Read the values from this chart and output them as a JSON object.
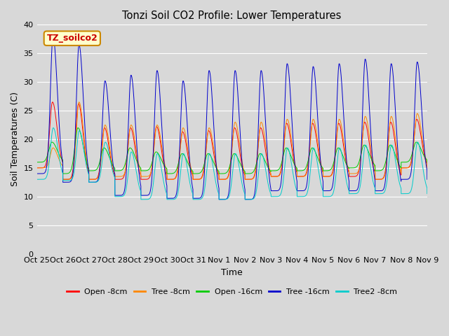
{
  "title": "Tonzi Soil CO2 Profile: Lower Temperatures",
  "xlabel": "Time",
  "ylabel": "Soil Temperatures (C)",
  "annotation_text": "TZ_soilco2",
  "annotation_bg": "#ffffcc",
  "annotation_border": "#cc8800",
  "ylim": [
    0,
    40
  ],
  "yticks": [
    0,
    5,
    10,
    15,
    20,
    25,
    30,
    35,
    40
  ],
  "bg_color": "#d8d8d8",
  "plot_bg": "#d8d8d8",
  "series": [
    {
      "label": "Open -8cm",
      "color": "#ff0000"
    },
    {
      "label": "Tree -8cm",
      "color": "#ff8800"
    },
    {
      "label": "Open -16cm",
      "color": "#00cc00"
    },
    {
      "label": "Tree -16cm",
      "color": "#0000cc"
    },
    {
      "label": "Tree2 -8cm",
      "color": "#00cccc"
    }
  ],
  "xtick_labels": [
    "Oct 25",
    "Oct 26",
    "Oct 27",
    "Oct 28",
    "Oct 29",
    "Oct 30",
    "Oct 31",
    "Nov 1",
    "Nov 2",
    "Nov 3",
    "Nov 4",
    "Nov 5",
    "Nov 6",
    "Nov 7",
    "Nov 8",
    "Nov 9"
  ],
  "n_days": 15,
  "pts_per_day": 288,
  "figsize": [
    6.4,
    4.8
  ],
  "dpi": 100
}
